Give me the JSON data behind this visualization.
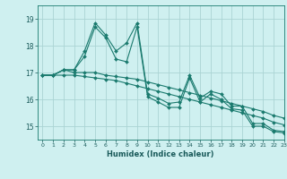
{
  "title": "",
  "xlabel": "Humidex (Indice chaleur)",
  "ylabel": "",
  "bg_color": "#cff0f0",
  "grid_color": "#aad4d4",
  "line_color": "#1a7a6e",
  "xlim": [
    -0.5,
    23
  ],
  "ylim": [
    14.5,
    19.5
  ],
  "yticks": [
    15,
    16,
    17,
    18,
    19
  ],
  "xticks": [
    0,
    1,
    2,
    3,
    4,
    5,
    6,
    7,
    8,
    9,
    10,
    11,
    12,
    13,
    14,
    15,
    16,
    17,
    18,
    19,
    20,
    21,
    22,
    23
  ],
  "lines": [
    {
      "x": [
        0,
        1,
        2,
        3,
        4,
        5,
        6,
        7,
        8,
        9,
        10,
        11,
        12,
        13,
        14,
        15,
        16,
        17,
        18,
        19,
        20,
        21,
        22,
        23
      ],
      "y": [
        16.9,
        16.9,
        17.1,
        17.1,
        17.8,
        18.85,
        18.4,
        17.8,
        18.1,
        18.85,
        16.2,
        16.05,
        15.85,
        15.9,
        16.9,
        16.05,
        16.3,
        16.2,
        15.75,
        15.75,
        15.1,
        15.1,
        14.85,
        14.8
      ]
    },
    {
      "x": [
        0,
        1,
        2,
        3,
        4,
        5,
        6,
        7,
        8,
        9,
        10,
        11,
        12,
        13,
        14,
        15,
        16,
        17,
        18,
        19,
        20,
        21,
        22,
        23
      ],
      "y": [
        16.9,
        16.9,
        17.1,
        17.1,
        17.6,
        18.7,
        18.3,
        17.5,
        17.4,
        18.7,
        16.1,
        15.9,
        15.7,
        15.7,
        16.8,
        15.9,
        16.2,
        16.0,
        15.65,
        15.6,
        15.0,
        15.0,
        14.8,
        14.75
      ]
    },
    {
      "x": [
        0,
        1,
        2,
        3,
        4,
        5,
        6,
        7,
        8,
        9,
        10,
        11,
        12,
        13,
        14,
        15,
        16,
        17,
        18,
        19,
        20,
        21,
        22,
        23
      ],
      "y": [
        16.9,
        16.9,
        17.1,
        17.0,
        17.0,
        17.0,
        16.9,
        16.85,
        16.8,
        16.75,
        16.65,
        16.55,
        16.45,
        16.35,
        16.25,
        16.15,
        16.05,
        15.95,
        15.85,
        15.75,
        15.65,
        15.55,
        15.4,
        15.3
      ]
    },
    {
      "x": [
        0,
        1,
        2,
        3,
        4,
        5,
        6,
        7,
        8,
        9,
        10,
        11,
        12,
        13,
        14,
        15,
        16,
        17,
        18,
        19,
        20,
        21,
        22,
        23
      ],
      "y": [
        16.9,
        16.9,
        16.9,
        16.9,
        16.85,
        16.8,
        16.75,
        16.7,
        16.6,
        16.5,
        16.4,
        16.3,
        16.2,
        16.1,
        16.0,
        15.9,
        15.8,
        15.7,
        15.6,
        15.5,
        15.4,
        15.3,
        15.15,
        15.05
      ]
    }
  ]
}
